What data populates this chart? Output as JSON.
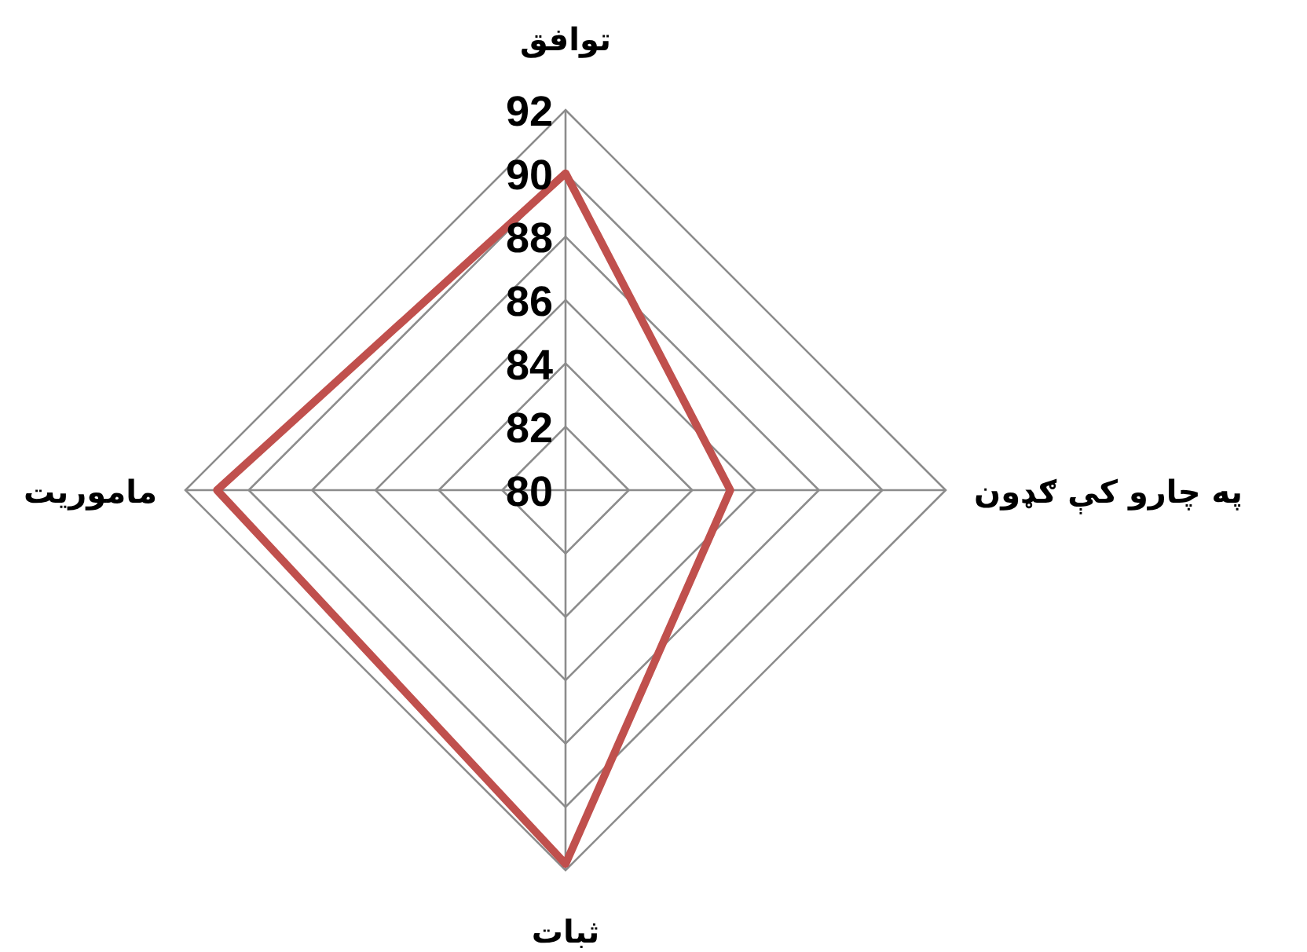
{
  "chart_data": {
    "type": "radar",
    "categories": [
      "توافق",
      "په چارو کې ګډون",
      "ثبات",
      "ماموریت"
    ],
    "series": [
      {
        "color": "#c0504d",
        "values": [
          90,
          85.2,
          91.8,
          91
        ]
      }
    ],
    "ylim": [
      80,
      92
    ],
    "yticks": [
      80,
      82,
      84,
      86,
      88,
      90,
      92
    ],
    "grid": true,
    "marker": "none"
  }
}
